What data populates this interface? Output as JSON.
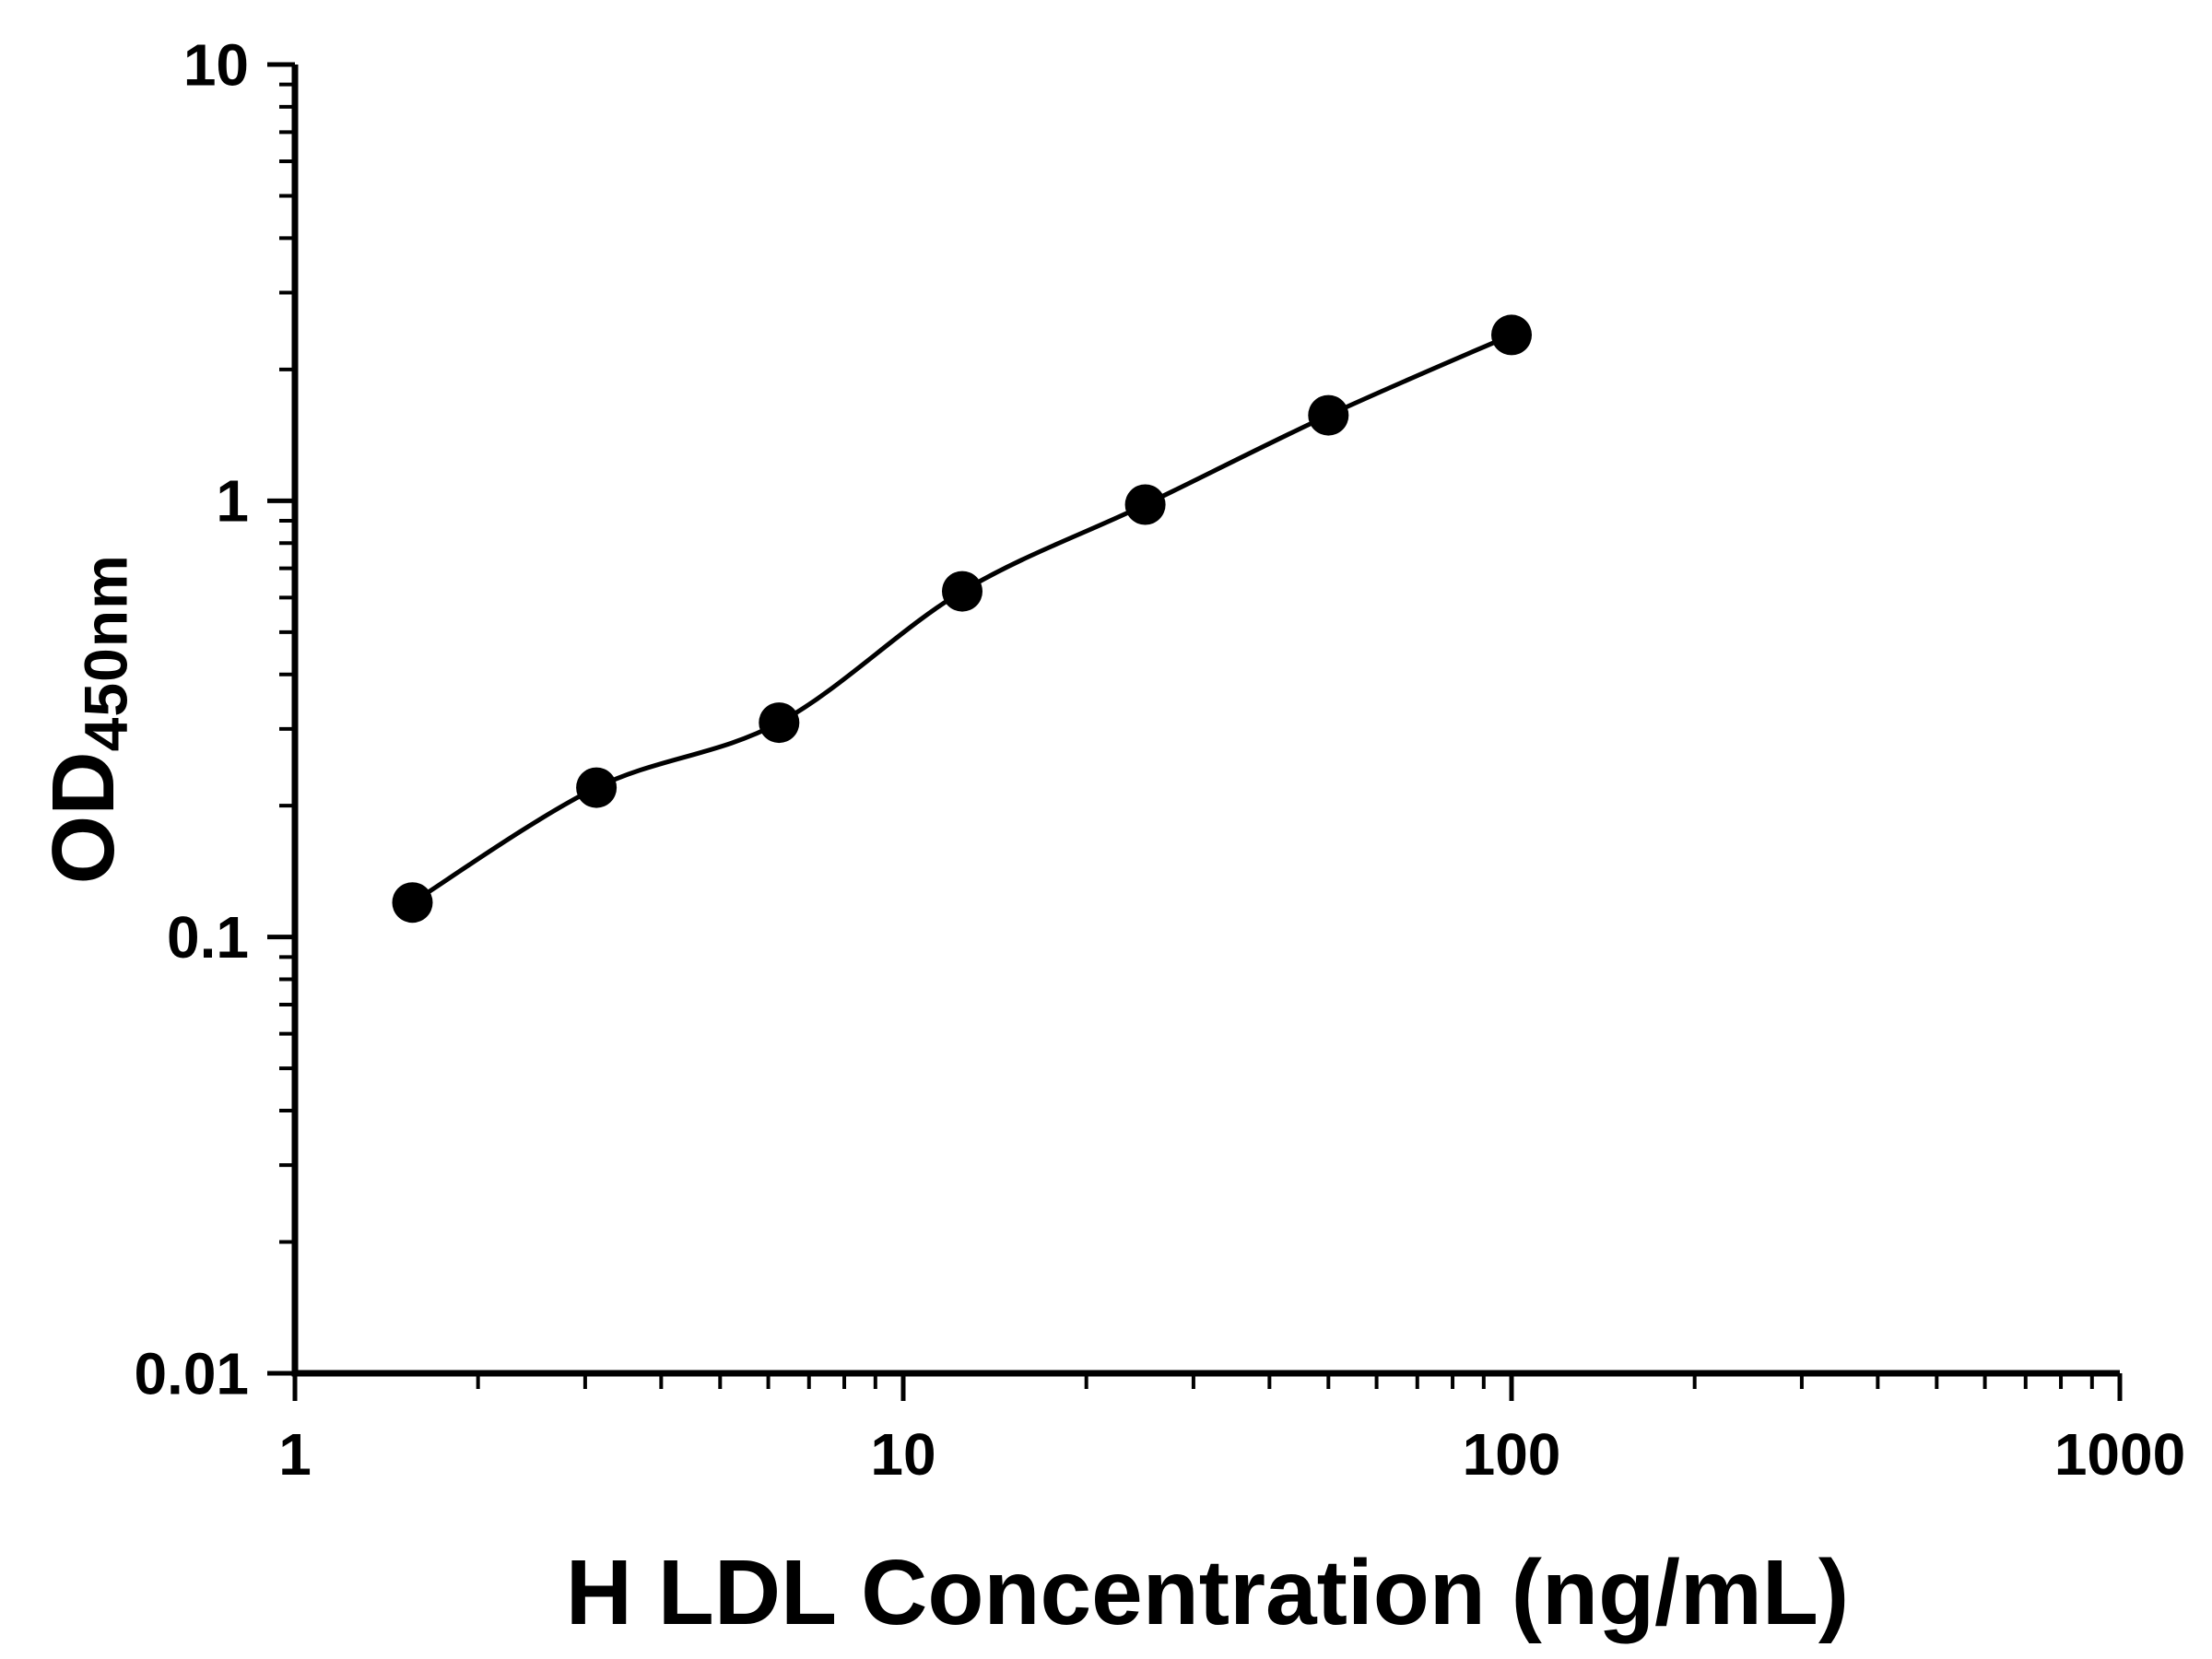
{
  "figure": {
    "background": "#ffffff"
  },
  "chart_data": {
    "type": "line",
    "xlabel": "H LDL Concentration (ng/mL)",
    "ylabel_main": "OD",
    "ylabel_sub": "450nm",
    "x_scale": "log",
    "y_scale": "log",
    "xlim": [
      1,
      1000
    ],
    "ylim": [
      0.01,
      10
    ],
    "x_ticks": [
      1,
      10,
      100,
      1000
    ],
    "x_tick_labels": [
      "1",
      "10",
      "100",
      "1000"
    ],
    "y_ticks": [
      0.01,
      0.1,
      1,
      10
    ],
    "y_tick_labels": [
      "0.01",
      "0.1",
      "1",
      "10"
    ],
    "x": [
      1.56,
      3.13,
      6.25,
      12.5,
      25,
      50,
      100
    ],
    "y": [
      0.12,
      0.22,
      0.31,
      0.62,
      0.98,
      1.57,
      2.4
    ],
    "marker": "circle",
    "marker_color": "#000000",
    "line_color": "#000000",
    "axis_color": "#000000",
    "grid": false,
    "legend": false
  }
}
